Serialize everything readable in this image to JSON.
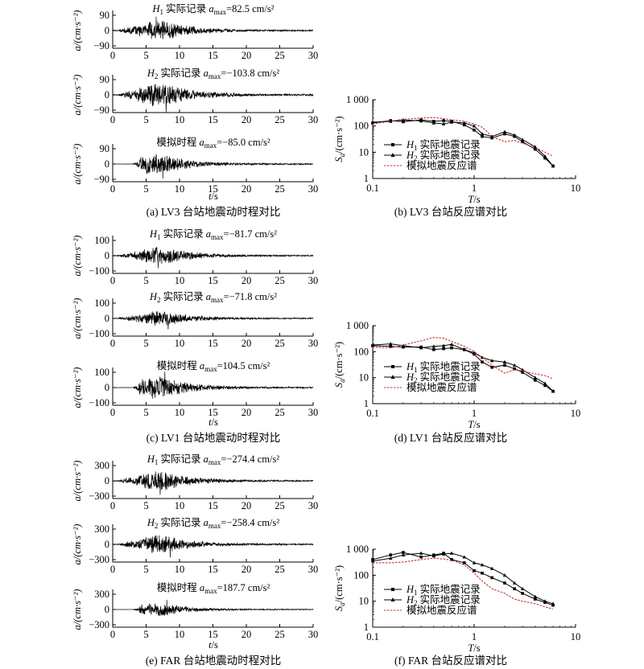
{
  "panels": [
    {
      "caption": "(a) LV3 台站地震动时程对比",
      "xlabel": "t/s",
      "traces": [
        {
          "station": "LV3",
          "record": "H1",
          "component_label": "H1",
          "title": "实际记录",
          "amax_label": "a",
          "amax_sub": "max",
          "amax_value": "=82.5 cm/s²",
          "peak": 82.5,
          "ylabel": "a/(cm·s⁻²)",
          "yticks": [
            "90",
            "0",
            "−90"
          ],
          "ylim": [
            -90,
            90
          ],
          "xlim": [
            0,
            30
          ],
          "xticks": [
            "0",
            "5",
            "10",
            "15",
            "20",
            "25",
            "30"
          ]
        },
        {
          "station": "LV3",
          "record": "H2",
          "component_label": "H2",
          "title": "实际记录",
          "amax_label": "a",
          "amax_sub": "max",
          "amax_value": "=−103.8 cm/s²",
          "peak": -103.8,
          "ylabel": "a/(cm·s⁻²)",
          "yticks": [
            "90",
            "0",
            "−90"
          ],
          "ylim": [
            -90,
            90
          ],
          "xlim": [
            0,
            30
          ],
          "xticks": [
            "0",
            "5",
            "10",
            "15",
            "20",
            "25",
            "30"
          ]
        },
        {
          "station": "LV3",
          "record": "SIM",
          "component_label": "",
          "title": "模拟时程",
          "amax_label": "a",
          "amax_sub": "max",
          "amax_value": "=−85.0 cm/s²",
          "peak": -85.0,
          "ylabel": "a/(cm·s⁻²)",
          "yticks": [
            "90",
            "0",
            "−90"
          ],
          "ylim": [
            -90,
            90
          ],
          "xlim": [
            0,
            30
          ],
          "xticks": [
            "0",
            "5",
            "10",
            "15",
            "20",
            "25",
            "30"
          ]
        }
      ]
    },
    {
      "caption": "(c) LV1 台站地震动时程对比",
      "xlabel": "t/s",
      "traces": [
        {
          "station": "LV1",
          "record": "H1",
          "component_label": "H1",
          "title": "实际记录",
          "amax_label": "a",
          "amax_sub": "max",
          "amax_value": "=−81.7 cm/s²",
          "peak": -81.7,
          "ylabel": "a/(cm·s⁻²)",
          "yticks": [
            "100",
            "0",
            "−100"
          ],
          "ylim": [
            -100,
            100
          ],
          "xlim": [
            0,
            30
          ],
          "xticks": [
            "0",
            "5",
            "10",
            "15",
            "20",
            "25",
            "30"
          ]
        },
        {
          "station": "LV1",
          "record": "H2",
          "component_label": "H2",
          "title": "实际记录",
          "amax_label": "a",
          "amax_sub": "max",
          "amax_value": "=−71.8 cm/s²",
          "peak": -71.8,
          "ylabel": "a/(cm·s⁻²)",
          "yticks": [
            "100",
            "0",
            "−100"
          ],
          "ylim": [
            -100,
            100
          ],
          "xlim": [
            0,
            30
          ],
          "xticks": [
            "0",
            "5",
            "10",
            "15",
            "20",
            "25",
            "30"
          ]
        },
        {
          "station": "LV1",
          "record": "SIM",
          "component_label": "",
          "title": "模拟时程",
          "amax_label": "a",
          "amax_sub": "max",
          "amax_value": "=104.5 cm/s²",
          "peak": 104.5,
          "ylabel": "a/(cm·s⁻²)",
          "yticks": [
            "100",
            "0",
            "−100"
          ],
          "ylim": [
            -100,
            100
          ],
          "xlim": [
            0,
            30
          ],
          "xticks": [
            "0",
            "5",
            "10",
            "15",
            "20",
            "25",
            "30"
          ]
        }
      ]
    },
    {
      "caption": "(e) FAR 台站地震动时程对比",
      "xlabel": "t/s",
      "traces": [
        {
          "station": "FAR",
          "record": "H1",
          "component_label": "H1",
          "title": "实际记录",
          "amax_label": "a",
          "amax_sub": "max",
          "amax_value": "=−274.4 cm/s²",
          "peak": -274.4,
          "ylabel": "a/(cm·s⁻²)",
          "yticks": [
            "300",
            "0",
            "−300"
          ],
          "ylim": [
            -300,
            300
          ],
          "xlim": [
            0,
            30
          ],
          "xticks": [
            "0",
            "5",
            "10",
            "15",
            "20",
            "25",
            "30"
          ]
        },
        {
          "station": "FAR",
          "record": "H2",
          "component_label": "H2",
          "title": "实际记录",
          "amax_label": "a",
          "amax_sub": "max",
          "amax_value": "=−258.4 cm/s²",
          "peak": -258.4,
          "ylabel": "a/(cm·s⁻²)",
          "yticks": [
            "300",
            "0",
            "−300"
          ],
          "ylim": [
            -300,
            300
          ],
          "xlim": [
            0,
            30
          ],
          "xticks": [
            "0",
            "5",
            "10",
            "15",
            "20",
            "25",
            "30"
          ]
        },
        {
          "station": "FAR",
          "record": "SIM",
          "component_label": "",
          "title": "模拟时程",
          "amax_label": "a",
          "amax_sub": "max",
          "amax_value": "=187.7 cm/s²",
          "peak": 187.7,
          "ylabel": "a/(cm·s⁻²)",
          "yticks": [
            "300",
            "0",
            "−300"
          ],
          "ylim": [
            -300,
            300
          ],
          "xlim": [
            0,
            30
          ],
          "xticks": [
            "0",
            "5",
            "10",
            "15",
            "20",
            "25",
            "30"
          ]
        }
      ]
    }
  ],
  "spectra": [
    {
      "caption": "(b) LV3 台站反应谱对比",
      "ylabel": "Sa/(cm·s⁻²)",
      "xlabel": "T/s",
      "xticks": [
        "0.1",
        "1",
        "10"
      ],
      "yticks": [
        "1 000",
        "100",
        "10",
        "1"
      ],
      "legend_position": "right",
      "legend": [
        "H1 实际地震记录",
        "H2 实际地震记录",
        "模拟地震反应谱"
      ]
    },
    {
      "caption": "(d) LV1 台站反应谱对比",
      "ylabel": "Sa/(cm·s⁻²)",
      "xlabel": "T/s",
      "xticks": [
        "0.1",
        "1",
        "10"
      ],
      "yticks": [
        "1 000",
        "100",
        "10",
        "1"
      ],
      "legend_position": "center",
      "legend": [
        "H1 实际地震记录",
        "H2 实际地震记录",
        "模拟地震反应谱"
      ]
    },
    {
      "caption": "(f) FAR 台站反应谱对比",
      "ylabel": "Sa/(cm·s⁻²)",
      "xlabel": "T/s",
      "xticks": [
        "0.1",
        "1",
        "10"
      ],
      "yticks": [
        "1 000",
        "100",
        "10",
        "1"
      ],
      "legend_position": "left",
      "legend": [
        "H1 实际地震记录",
        "H2 实际地震记录",
        "模拟地震反应谱"
      ]
    }
  ],
  "chart_data": [
    {
      "type": "line",
      "title": "",
      "station": "LV3",
      "xlabel": "T/s",
      "ylabel": "Sa/(cm·s⁻²)",
      "xscale": "log",
      "yscale": "log",
      "xlim": [
        0.1,
        10
      ],
      "ylim": [
        1,
        1000
      ],
      "legend": "right",
      "colors": {
        "H1 实际地震记录": "#000000",
        "H2 实际地震记录": "#000000",
        "模拟地震反应谱": "#c83030"
      },
      "series": [
        {
          "name": "H1 实际地震记录",
          "marker": "square",
          "x": [
            0.1,
            0.15,
            0.2,
            0.3,
            0.4,
            0.5,
            0.6,
            0.8,
            1.0,
            1.2,
            1.5,
            2.0,
            2.5,
            3.0,
            4.0,
            5.0,
            6.0
          ],
          "y": [
            130,
            160,
            145,
            170,
            150,
            160,
            150,
            110,
            70,
            40,
            35,
            50,
            40,
            25,
            13,
            6,
            3
          ]
        },
        {
          "name": "H2 实际地震记录",
          "marker": "triangle",
          "x": [
            0.1,
            0.15,
            0.2,
            0.3,
            0.4,
            0.5,
            0.6,
            0.8,
            1.0,
            1.2,
            1.5,
            2.0,
            2.5,
            3.0,
            4.0,
            5.0,
            6.0
          ],
          "y": [
            140,
            150,
            170,
            155,
            130,
            120,
            140,
            130,
            100,
            50,
            40,
            60,
            45,
            30,
            16,
            7,
            3
          ]
        },
        {
          "name": "模拟地震反应谱",
          "marker": "none",
          "x": [
            0.1,
            0.15,
            0.2,
            0.3,
            0.4,
            0.5,
            0.6,
            0.8,
            1.0,
            1.2,
            1.5,
            2.0,
            2.5,
            3.0,
            4.0,
            5.0,
            6.0
          ],
          "y": [
            120,
            150,
            180,
            200,
            210,
            190,
            170,
            150,
            120,
            90,
            40,
            25,
            28,
            22,
            15,
            10,
            7
          ]
        }
      ]
    },
    {
      "type": "line",
      "title": "",
      "station": "LV1",
      "xlabel": "T/s",
      "ylabel": "Sa/(cm·s⁻²)",
      "xscale": "log",
      "yscale": "log",
      "xlim": [
        0.1,
        10
      ],
      "ylim": [
        1,
        1000
      ],
      "legend": "center",
      "colors": {
        "H1 实际地震记录": "#000000",
        "H2 实际地震记录": "#000000",
        "模拟地震反应谱": "#c83030"
      },
      "series": [
        {
          "name": "H1 实际地震记录",
          "marker": "square",
          "x": [
            0.1,
            0.15,
            0.2,
            0.3,
            0.4,
            0.5,
            0.6,
            0.8,
            1.0,
            1.2,
            1.5,
            2.0,
            2.5,
            3.0,
            4.0,
            5.0,
            6.0
          ],
          "y": [
            170,
            160,
            150,
            150,
            120,
            130,
            140,
            120,
            80,
            40,
            25,
            30,
            22,
            16,
            8,
            5,
            3
          ]
        },
        {
          "name": "H2 实际地震记录",
          "marker": "triangle",
          "x": [
            0.1,
            0.15,
            0.2,
            0.3,
            0.4,
            0.5,
            0.6,
            0.8,
            1.0,
            1.2,
            1.5,
            2.0,
            2.5,
            3.0,
            4.0,
            5.0,
            6.0
          ],
          "y": [
            180,
            200,
            170,
            140,
            160,
            170,
            190,
            120,
            90,
            60,
            45,
            40,
            30,
            20,
            10,
            6,
            3
          ]
        },
        {
          "name": "模拟地震反应谱",
          "marker": "none",
          "x": [
            0.1,
            0.15,
            0.2,
            0.3,
            0.4,
            0.5,
            0.6,
            0.8,
            1.0,
            1.2,
            1.5,
            2.0,
            2.5,
            3.0,
            4.0,
            5.0,
            6.0
          ],
          "y": [
            150,
            140,
            180,
            260,
            350,
            330,
            250,
            160,
            100,
            60,
            30,
            15,
            20,
            18,
            14,
            12,
            9
          ]
        }
      ]
    },
    {
      "type": "line",
      "title": "",
      "station": "FAR",
      "xlabel": "T/s",
      "ylabel": "Sa/(cm·s⁻²)",
      "xscale": "log",
      "yscale": "log",
      "xlim": [
        0.1,
        10
      ],
      "ylim": [
        1,
        1000
      ],
      "legend": "left",
      "colors": {
        "H1 实际地震记录": "#000000",
        "H2 实际地震记录": "#000000",
        "模拟地震反应谱": "#c83030"
      },
      "series": [
        {
          "name": "H1 实际地震记录",
          "marker": "square",
          "x": [
            0.1,
            0.15,
            0.2,
            0.3,
            0.4,
            0.5,
            0.6,
            0.8,
            1.0,
            1.2,
            1.5,
            2.0,
            2.5,
            3.0,
            4.0,
            5.0,
            6.0
          ],
          "y": [
            400,
            600,
            750,
            500,
            600,
            700,
            400,
            300,
            150,
            120,
            80,
            50,
            30,
            20,
            12,
            9,
            7
          ]
        },
        {
          "name": "H2 实际地震记录",
          "marker": "triangle",
          "x": [
            0.1,
            0.15,
            0.2,
            0.3,
            0.4,
            0.5,
            0.6,
            0.8,
            1.0,
            1.2,
            1.5,
            2.0,
            2.5,
            3.0,
            4.0,
            5.0,
            6.0
          ],
          "y": [
            350,
            450,
            600,
            700,
            550,
            650,
            700,
            500,
            300,
            250,
            180,
            100,
            50,
            30,
            15,
            10,
            8
          ]
        },
        {
          "name": "模拟地震反应谱",
          "marker": "none",
          "x": [
            0.1,
            0.15,
            0.2,
            0.3,
            0.4,
            0.5,
            0.6,
            0.8,
            1.0,
            1.2,
            1.5,
            2.0,
            2.5,
            3.0,
            4.0,
            5.0,
            6.0
          ],
          "y": [
            300,
            300,
            320,
            400,
            450,
            420,
            380,
            250,
            120,
            60,
            30,
            20,
            12,
            10,
            8,
            6,
            5
          ]
        }
      ]
    }
  ]
}
